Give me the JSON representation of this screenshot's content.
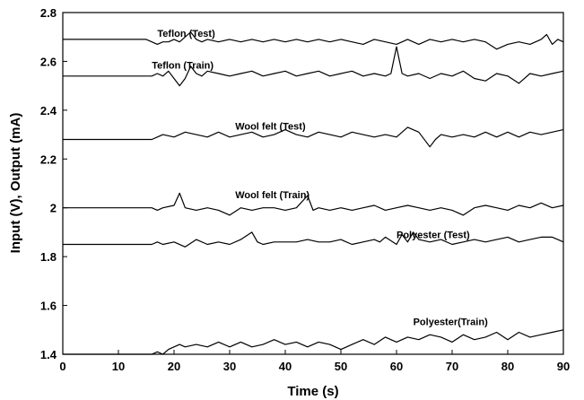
{
  "chart_data": {
    "type": "line",
    "xlabel": "Time (s)",
    "ylabel": "Input (V), Output (mA)",
    "xlim": [
      0,
      90
    ],
    "ylim": [
      1.4,
      2.8
    ],
    "xticks": [
      0,
      10,
      20,
      30,
      40,
      50,
      60,
      70,
      80,
      90
    ],
    "yticks": [
      1.4,
      1.6,
      1.8,
      2,
      2.2,
      2.4,
      2.6,
      2.8
    ],
    "ytick_labels": [
      "1.4",
      "1.6",
      "1.8",
      "2",
      "2.2",
      "2.4",
      "2.6",
      "2.8"
    ],
    "grid": false,
    "legend": "none",
    "line_color": "#000000",
    "series": [
      {
        "name": "Teflon (Test)",
        "label_at": [
          17,
          2.7
        ],
        "points": [
          [
            0,
            2.69
          ],
          [
            15,
            2.69
          ],
          [
            16,
            2.68
          ],
          [
            17,
            2.67
          ],
          [
            18,
            2.68
          ],
          [
            19,
            2.68
          ],
          [
            20,
            2.69
          ],
          [
            21,
            2.68
          ],
          [
            22,
            2.7
          ],
          [
            23,
            2.72
          ],
          [
            24,
            2.69
          ],
          [
            25,
            2.68
          ],
          [
            26,
            2.69
          ],
          [
            28,
            2.68
          ],
          [
            30,
            2.69
          ],
          [
            32,
            2.68
          ],
          [
            34,
            2.69
          ],
          [
            36,
            2.68
          ],
          [
            38,
            2.69
          ],
          [
            40,
            2.68
          ],
          [
            42,
            2.69
          ],
          [
            44,
            2.68
          ],
          [
            46,
            2.69
          ],
          [
            48,
            2.68
          ],
          [
            50,
            2.69
          ],
          [
            52,
            2.68
          ],
          [
            54,
            2.67
          ],
          [
            56,
            2.69
          ],
          [
            58,
            2.68
          ],
          [
            60,
            2.67
          ],
          [
            62,
            2.69
          ],
          [
            64,
            2.67
          ],
          [
            66,
            2.69
          ],
          [
            68,
            2.68
          ],
          [
            70,
            2.69
          ],
          [
            72,
            2.68
          ],
          [
            74,
            2.69
          ],
          [
            76,
            2.68
          ],
          [
            78,
            2.65
          ],
          [
            80,
            2.67
          ],
          [
            82,
            2.68
          ],
          [
            84,
            2.67
          ],
          [
            86,
            2.69
          ],
          [
            87,
            2.71
          ],
          [
            88,
            2.67
          ],
          [
            89,
            2.69
          ],
          [
            90,
            2.68
          ]
        ]
      },
      {
        "name": "Teflon (Train)",
        "label_at": [
          16,
          2.57
        ],
        "points": [
          [
            0,
            2.54
          ],
          [
            16,
            2.54
          ],
          [
            17,
            2.55
          ],
          [
            18,
            2.54
          ],
          [
            19,
            2.56
          ],
          [
            20,
            2.53
          ],
          [
            21,
            2.5
          ],
          [
            22,
            2.53
          ],
          [
            23,
            2.58
          ],
          [
            24,
            2.55
          ],
          [
            25,
            2.54
          ],
          [
            26,
            2.56
          ],
          [
            28,
            2.55
          ],
          [
            30,
            2.54
          ],
          [
            32,
            2.55
          ],
          [
            34,
            2.56
          ],
          [
            36,
            2.54
          ],
          [
            38,
            2.55
          ],
          [
            40,
            2.56
          ],
          [
            42,
            2.54
          ],
          [
            44,
            2.55
          ],
          [
            46,
            2.56
          ],
          [
            48,
            2.54
          ],
          [
            50,
            2.55
          ],
          [
            52,
            2.56
          ],
          [
            54,
            2.54
          ],
          [
            56,
            2.55
          ],
          [
            58,
            2.54
          ],
          [
            59,
            2.55
          ],
          [
            60,
            2.66
          ],
          [
            61,
            2.55
          ],
          [
            62,
            2.54
          ],
          [
            64,
            2.55
          ],
          [
            66,
            2.53
          ],
          [
            68,
            2.55
          ],
          [
            70,
            2.54
          ],
          [
            72,
            2.56
          ],
          [
            74,
            2.53
          ],
          [
            76,
            2.52
          ],
          [
            78,
            2.55
          ],
          [
            80,
            2.54
          ],
          [
            82,
            2.51
          ],
          [
            84,
            2.55
          ],
          [
            86,
            2.54
          ],
          [
            88,
            2.55
          ],
          [
            90,
            2.56
          ]
        ]
      },
      {
        "name": "Wool felt (Test)",
        "label_at": [
          31,
          2.32
        ],
        "points": [
          [
            0,
            2.28
          ],
          [
            16,
            2.28
          ],
          [
            17,
            2.29
          ],
          [
            18,
            2.3
          ],
          [
            20,
            2.29
          ],
          [
            22,
            2.31
          ],
          [
            24,
            2.3
          ],
          [
            26,
            2.29
          ],
          [
            28,
            2.31
          ],
          [
            30,
            2.29
          ],
          [
            32,
            2.3
          ],
          [
            34,
            2.31
          ],
          [
            36,
            2.29
          ],
          [
            38,
            2.3
          ],
          [
            40,
            2.32
          ],
          [
            42,
            2.3
          ],
          [
            44,
            2.29
          ],
          [
            46,
            2.31
          ],
          [
            48,
            2.3
          ],
          [
            50,
            2.29
          ],
          [
            52,
            2.31
          ],
          [
            54,
            2.3
          ],
          [
            56,
            2.29
          ],
          [
            58,
            2.3
          ],
          [
            60,
            2.29
          ],
          [
            62,
            2.33
          ],
          [
            64,
            2.31
          ],
          [
            66,
            2.25
          ],
          [
            67,
            2.28
          ],
          [
            68,
            2.3
          ],
          [
            70,
            2.29
          ],
          [
            72,
            2.3
          ],
          [
            74,
            2.29
          ],
          [
            76,
            2.31
          ],
          [
            78,
            2.29
          ],
          [
            80,
            2.31
          ],
          [
            82,
            2.29
          ],
          [
            84,
            2.31
          ],
          [
            86,
            2.3
          ],
          [
            88,
            2.31
          ],
          [
            90,
            2.32
          ]
        ]
      },
      {
        "name": "Wool felt (Train)",
        "label_at": [
          31,
          2.04
        ],
        "points": [
          [
            0,
            2.0
          ],
          [
            16,
            2.0
          ],
          [
            17,
            1.99
          ],
          [
            18,
            2.0
          ],
          [
            20,
            2.01
          ],
          [
            21,
            2.06
          ],
          [
            22,
            2.0
          ],
          [
            24,
            1.99
          ],
          [
            26,
            2.0
          ],
          [
            28,
            1.99
          ],
          [
            30,
            1.97
          ],
          [
            32,
            2.0
          ],
          [
            34,
            1.99
          ],
          [
            36,
            2.0
          ],
          [
            38,
            2.0
          ],
          [
            40,
            1.99
          ],
          [
            42,
            2.0
          ],
          [
            44,
            2.05
          ],
          [
            45,
            1.99
          ],
          [
            46,
            2.0
          ],
          [
            48,
            1.99
          ],
          [
            50,
            2.0
          ],
          [
            52,
            1.99
          ],
          [
            54,
            2.0
          ],
          [
            56,
            2.01
          ],
          [
            58,
            1.99
          ],
          [
            60,
            2.0
          ],
          [
            62,
            2.01
          ],
          [
            64,
            2.0
          ],
          [
            66,
            1.99
          ],
          [
            68,
            2.0
          ],
          [
            70,
            1.99
          ],
          [
            72,
            1.97
          ],
          [
            74,
            2.0
          ],
          [
            76,
            2.01
          ],
          [
            78,
            2.0
          ],
          [
            80,
            1.99
          ],
          [
            82,
            2.01
          ],
          [
            84,
            2.0
          ],
          [
            86,
            2.02
          ],
          [
            88,
            2.0
          ],
          [
            90,
            2.01
          ]
        ]
      },
      {
        "name": "Polyester (Test)",
        "label_at": [
          60,
          1.875
        ],
        "points": [
          [
            0,
            1.85
          ],
          [
            16,
            1.85
          ],
          [
            17,
            1.86
          ],
          [
            18,
            1.85
          ],
          [
            20,
            1.86
          ],
          [
            22,
            1.84
          ],
          [
            24,
            1.87
          ],
          [
            26,
            1.85
          ],
          [
            28,
            1.86
          ],
          [
            30,
            1.85
          ],
          [
            32,
            1.87
          ],
          [
            34,
            1.9
          ],
          [
            35,
            1.86
          ],
          [
            36,
            1.85
          ],
          [
            38,
            1.86
          ],
          [
            40,
            1.86
          ],
          [
            42,
            1.86
          ],
          [
            44,
            1.87
          ],
          [
            46,
            1.86
          ],
          [
            48,
            1.86
          ],
          [
            50,
            1.87
          ],
          [
            52,
            1.85
          ],
          [
            54,
            1.86
          ],
          [
            56,
            1.87
          ],
          [
            57,
            1.86
          ],
          [
            58,
            1.88
          ],
          [
            60,
            1.85
          ],
          [
            61,
            1.89
          ],
          [
            62,
            1.86
          ],
          [
            63,
            1.9
          ],
          [
            64,
            1.87
          ],
          [
            66,
            1.86
          ],
          [
            68,
            1.87
          ],
          [
            70,
            1.85
          ],
          [
            72,
            1.86
          ],
          [
            74,
            1.87
          ],
          [
            76,
            1.86
          ],
          [
            78,
            1.87
          ],
          [
            80,
            1.88
          ],
          [
            82,
            1.86
          ],
          [
            84,
            1.87
          ],
          [
            86,
            1.88
          ],
          [
            88,
            1.88
          ],
          [
            89,
            1.87
          ],
          [
            90,
            1.86
          ]
        ]
      },
      {
        "name": "Polyester(Train)",
        "label_at": [
          63,
          1.52
        ],
        "points": [
          [
            0,
            1.4
          ],
          [
            16,
            1.4
          ],
          [
            17,
            1.41
          ],
          [
            18,
            1.4
          ],
          [
            19,
            1.42
          ],
          [
            20,
            1.43
          ],
          [
            21,
            1.44
          ],
          [
            22,
            1.43
          ],
          [
            24,
            1.44
          ],
          [
            26,
            1.43
          ],
          [
            28,
            1.45
          ],
          [
            30,
            1.43
          ],
          [
            32,
            1.45
          ],
          [
            34,
            1.43
          ],
          [
            36,
            1.44
          ],
          [
            38,
            1.46
          ],
          [
            40,
            1.44
          ],
          [
            42,
            1.45
          ],
          [
            44,
            1.43
          ],
          [
            46,
            1.45
          ],
          [
            48,
            1.44
          ],
          [
            50,
            1.42
          ],
          [
            52,
            1.44
          ],
          [
            54,
            1.46
          ],
          [
            56,
            1.44
          ],
          [
            58,
            1.47
          ],
          [
            60,
            1.45
          ],
          [
            62,
            1.47
          ],
          [
            64,
            1.46
          ],
          [
            66,
            1.48
          ],
          [
            68,
            1.47
          ],
          [
            70,
            1.45
          ],
          [
            72,
            1.48
          ],
          [
            74,
            1.46
          ],
          [
            76,
            1.47
          ],
          [
            78,
            1.49
          ],
          [
            80,
            1.46
          ],
          [
            82,
            1.49
          ],
          [
            84,
            1.47
          ],
          [
            86,
            1.48
          ],
          [
            88,
            1.49
          ],
          [
            90,
            1.5
          ]
        ]
      }
    ]
  }
}
